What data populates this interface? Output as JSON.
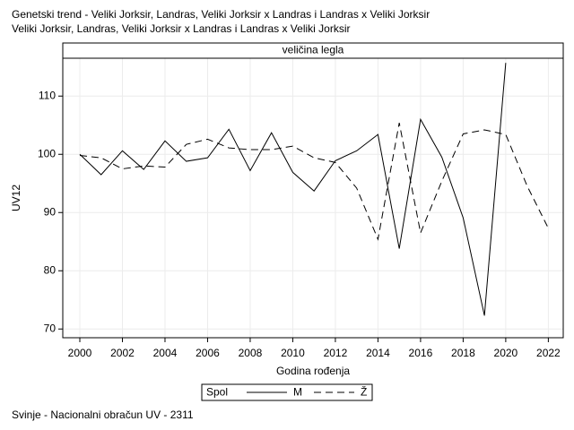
{
  "chart_data": {
    "type": "line",
    "title": [
      "Genetski trend - Veliki Jorksir, Landras, Veliki Jorksir x Landras i Landras x Veliki Jorksir",
      "Veliki Jorksir, Landras, Veliki Jorksir x Landras i Landras x Veliki Jorksir"
    ],
    "panel_label": "veličina legla",
    "x_label": "Godina rođenja",
    "y_label": "UV12",
    "legend_title": "Spol",
    "footnote": "Svinje - Nacionalni obračun UV - 2311",
    "x": [
      2000,
      2001,
      2002,
      2003,
      2004,
      2005,
      2006,
      2007,
      2008,
      2009,
      2010,
      2011,
      2012,
      2013,
      2014,
      2015,
      2016,
      2017,
      2018,
      2019,
      2020,
      2021,
      2022
    ],
    "series": [
      {
        "name": "M",
        "color": "#000000",
        "dash": "solid",
        "values": [
          100,
          96.5,
          100.6,
          97.4,
          102.3,
          98.8,
          99.4,
          104.3,
          97.2,
          103.7,
          96.9,
          93.7,
          98.9,
          100.6,
          103.4,
          83.8,
          106,
          99.5,
          89.1,
          72.3,
          115.7,
          null,
          null
        ]
      },
      {
        "name": "Ž",
        "color": "#000000",
        "dash": "dashed",
        "values": [
          99.8,
          99.4,
          97.5,
          98,
          97.8,
          101.7,
          102.6,
          101.1,
          100.8,
          100.8,
          101.4,
          99.4,
          98.6,
          94.2,
          85.4,
          105.4,
          86.5,
          95.4,
          103.5,
          104.2,
          103.4,
          94.6,
          87.3
        ]
      }
    ],
    "xlim": [
      1999.2,
      2022.7
    ],
    "ylim": [
      68.5,
      116.5
    ],
    "xticks": [
      2000,
      2002,
      2004,
      2006,
      2008,
      2010,
      2012,
      2014,
      2016,
      2018,
      2020,
      2022
    ],
    "yticks": [
      70,
      80,
      90,
      100,
      110
    ],
    "grid": true
  }
}
